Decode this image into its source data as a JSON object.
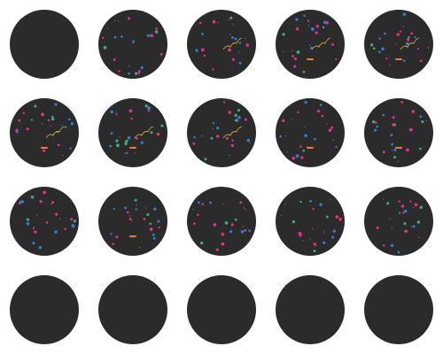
{
  "background_color": "#ffffff",
  "well_color": "#2b2b2b",
  "colors": {
    "magenta": "#e5308a",
    "blue": "#2f7fd6",
    "green": "#3fae7a",
    "orange": "#f07a3a",
    "gold": "#d9a53a",
    "faint": "#6f6f6f"
  },
  "grid": {
    "rows": 4,
    "cols": 5
  },
  "wells": [
    {
      "row": 0,
      "col": 0,
      "state": "empty"
    },
    {
      "row": 0,
      "col": 1,
      "state": "populated",
      "fiber": false,
      "orange_mark": false
    },
    {
      "row": 0,
      "col": 2,
      "state": "populated",
      "fiber": true,
      "orange_mark": false
    },
    {
      "row": 0,
      "col": 3,
      "state": "populated",
      "fiber": true,
      "orange_mark": true
    },
    {
      "row": 0,
      "col": 4,
      "state": "populated",
      "fiber": true,
      "orange_mark": true
    },
    {
      "row": 1,
      "col": 0,
      "state": "populated",
      "fiber": true,
      "orange_mark": true
    },
    {
      "row": 1,
      "col": 1,
      "state": "populated",
      "fiber": true,
      "orange_mark": true
    },
    {
      "row": 1,
      "col": 2,
      "state": "populated",
      "fiber": true,
      "orange_mark": false
    },
    {
      "row": 1,
      "col": 3,
      "state": "populated",
      "fiber": false,
      "orange_mark": true
    },
    {
      "row": 1,
      "col": 4,
      "state": "populated",
      "fiber": false,
      "orange_mark": true
    },
    {
      "row": 2,
      "col": 0,
      "state": "populated",
      "fiber": false,
      "orange_mark": false
    },
    {
      "row": 2,
      "col": 1,
      "state": "populated",
      "fiber": false,
      "orange_mark": true
    },
    {
      "row": 2,
      "col": 2,
      "state": "populated",
      "fiber": false,
      "orange_mark": false
    },
    {
      "row": 2,
      "col": 3,
      "state": "populated",
      "fiber": false,
      "orange_mark": false
    },
    {
      "row": 2,
      "col": 4,
      "state": "populated",
      "fiber": false,
      "orange_mark": false
    },
    {
      "row": 3,
      "col": 0,
      "state": "empty"
    },
    {
      "row": 3,
      "col": 1,
      "state": "empty"
    },
    {
      "row": 3,
      "col": 2,
      "state": "empty"
    },
    {
      "row": 3,
      "col": 3,
      "state": "empty"
    },
    {
      "row": 3,
      "col": 4,
      "state": "empty"
    }
  ]
}
